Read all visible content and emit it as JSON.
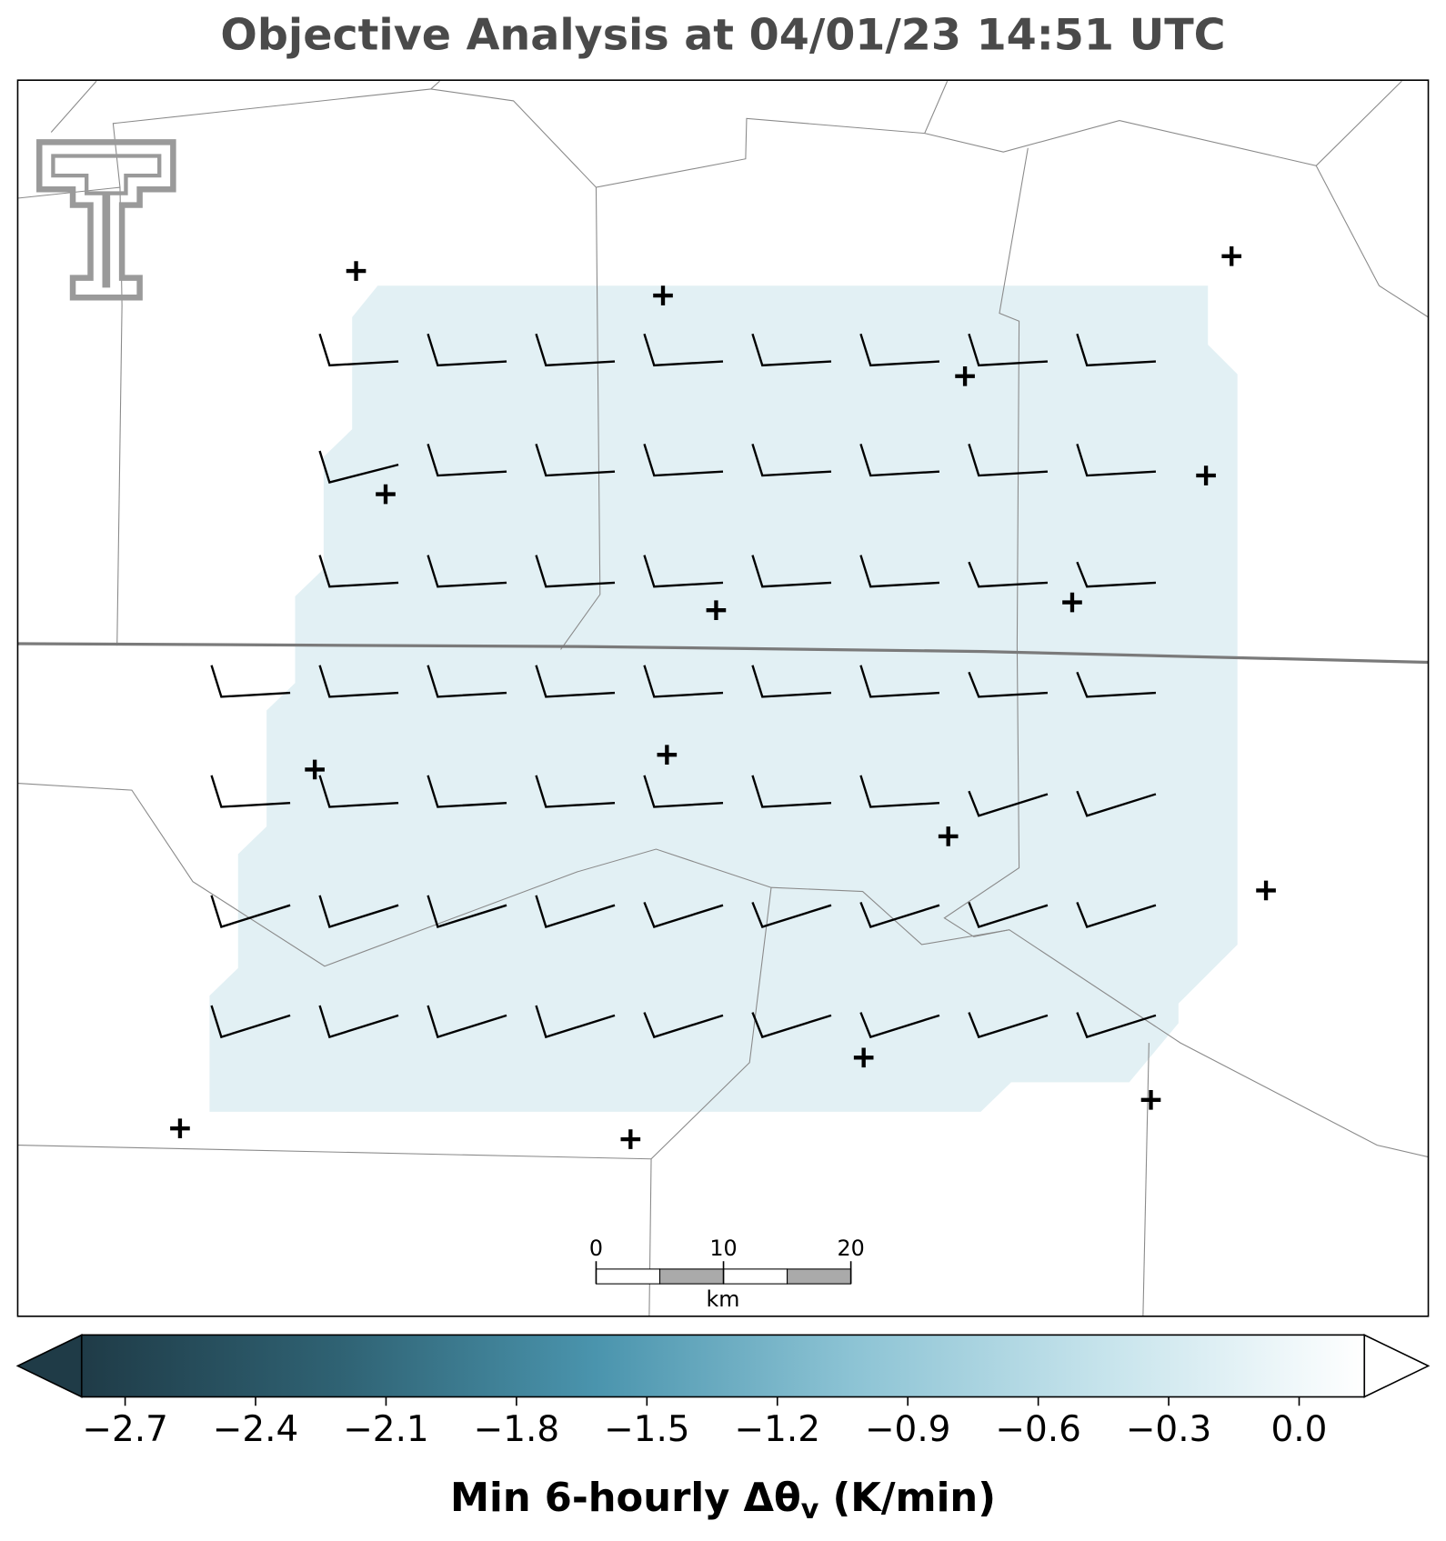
{
  "title": "Objective Analysis at 04/01/23 14:51 UTC",
  "scalebar": {
    "ticks": [
      0,
      10,
      20
    ],
    "unit": "km"
  },
  "colorbar": {
    "lim": [
      -2.8,
      0.15
    ],
    "ticks": [
      {
        "value": -2.7,
        "label": "−2.7"
      },
      {
        "value": -2.4,
        "label": "−2.4"
      },
      {
        "value": -2.1,
        "label": "−2.1"
      },
      {
        "value": -1.8,
        "label": "−1.8"
      },
      {
        "value": -1.5,
        "label": "−1.5"
      },
      {
        "value": -1.2,
        "label": "−1.2"
      },
      {
        "value": -0.9,
        "label": "−0.9"
      },
      {
        "value": -0.6,
        "label": "−0.6"
      },
      {
        "value": -0.3,
        "label": "−0.3"
      },
      {
        "value": 0,
        "label": "0.0"
      }
    ],
    "colors": [
      "#1f3b47",
      "#2f6273",
      "#4a94ad",
      "#8cc3d4",
      "#c7e4ec",
      "#ffffff"
    ],
    "label": "Min 6-hourly Δθ",
    "label_subscript": "v",
    "label_suffix": " (K/min)"
  }
}
